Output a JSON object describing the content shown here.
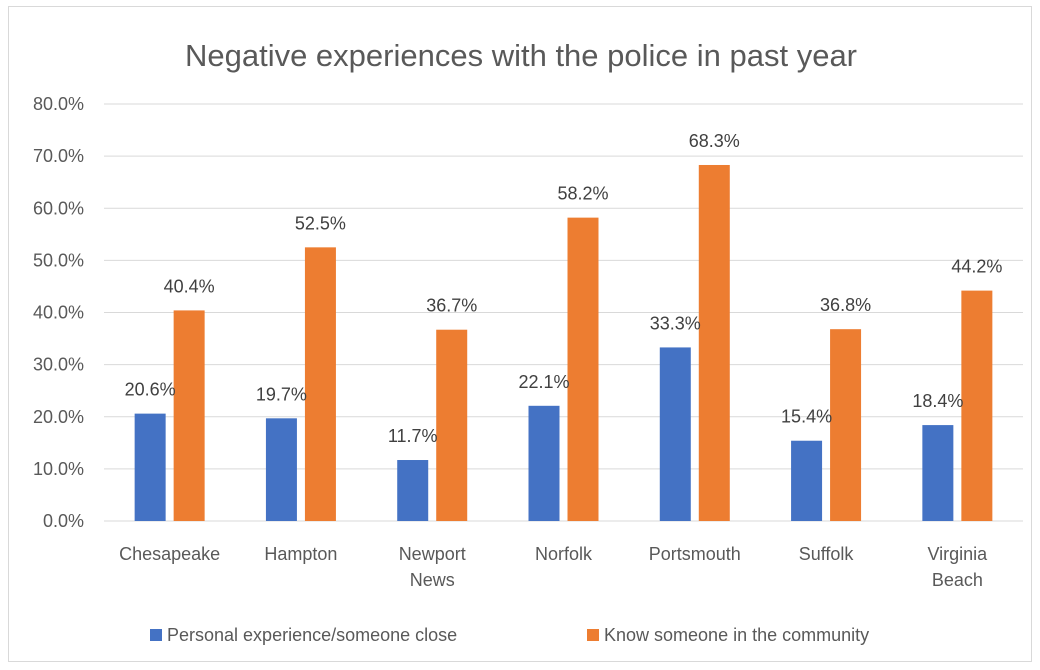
{
  "chart_data": {
    "type": "bar",
    "title": "Negative experiences with the police in past year",
    "xlabel": "",
    "ylabel": "",
    "ylim": [
      0,
      80
    ],
    "yticks": [
      "0.0%",
      "10.0%",
      "20.0%",
      "30.0%",
      "40.0%",
      "50.0%",
      "60.0%",
      "70.0%",
      "80.0%"
    ],
    "categories": [
      [
        "Chesapeake"
      ],
      [
        "Hampton"
      ],
      [
        "Newport",
        "News"
      ],
      [
        "Norfolk"
      ],
      [
        "Portsmouth"
      ],
      [
        "Suffolk"
      ],
      [
        "Virginia",
        "Beach"
      ]
    ],
    "series": [
      {
        "name": "Personal experience/someone close",
        "color": "#4472c4",
        "values": [
          20.6,
          19.7,
          11.7,
          22.1,
          33.3,
          15.4,
          18.4
        ],
        "labels": [
          "20.6%",
          "19.7%",
          "11.7%",
          "22.1%",
          "33.3%",
          "15.4%",
          "18.4%"
        ]
      },
      {
        "name": "Know someone in the community",
        "color": "#ed7d31",
        "values": [
          40.4,
          52.5,
          36.7,
          58.2,
          68.3,
          36.8,
          44.2
        ],
        "labels": [
          "40.4%",
          "52.5%",
          "36.7%",
          "58.2%",
          "68.3%",
          "36.8%",
          "44.2%"
        ]
      }
    ],
    "grid": true,
    "legend_position": "bottom",
    "gridline_color": "#d9d9d9"
  }
}
